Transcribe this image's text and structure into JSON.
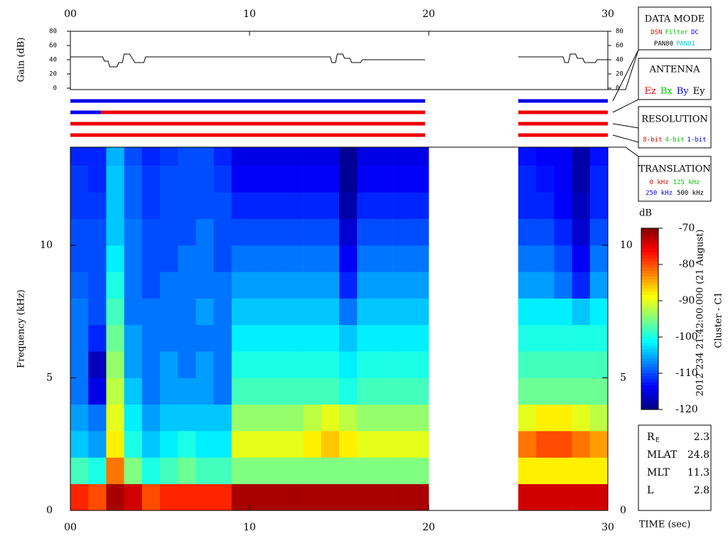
{
  "chart_data": [
    {
      "type": "line",
      "ylabel": "Gain (dB)",
      "x": [
        0,
        1.8,
        1.9,
        2.1,
        2.2,
        2.6,
        2.7,
        2.9,
        3.0,
        3.3,
        3.4,
        3.5,
        3.6,
        4.1,
        4.2,
        14.5,
        14.6,
        14.8,
        14.9,
        15.2,
        15.3,
        15.6,
        15.7,
        16.2,
        16.3,
        19.8,
        22.5,
        25.0,
        27.5,
        27.6,
        27.8,
        27.9,
        28.2,
        28.3,
        28.6,
        28.7,
        29.3,
        29.4,
        30
      ],
      "series": [
        {
          "color": "#000000",
          "values": [
            44,
            44,
            38,
            38,
            30,
            30,
            36,
            36,
            48,
            48,
            44,
            40,
            36,
            36,
            44,
            44,
            36,
            36,
            48,
            48,
            42,
            42,
            36,
            36,
            40,
            40,
            null,
            44,
            44,
            36,
            36,
            48,
            48,
            42,
            42,
            36,
            36,
            40,
            40
          ]
        }
      ],
      "xlim": [
        0,
        30
      ],
      "ylim": [
        0,
        80
      ],
      "xticks": [
        {
          "value": 0,
          "label": "00"
        },
        10,
        20,
        30
      ],
      "yticks": [
        0,
        20,
        40,
        60,
        80
      ]
    },
    {
      "type": "timeline",
      "xlim": [
        0,
        30
      ],
      "rows": [
        {
          "segments": [
            {
              "start": 0,
              "end": 19.8,
              "color": "#0000ee"
            },
            {
              "start": 25,
              "end": 30,
              "color": "#0000ee"
            }
          ]
        },
        {
          "segments": [
            {
              "start": 0,
              "end": 1.7,
              "color": "#0000ee"
            },
            {
              "start": 1.7,
              "end": 19.8,
              "color": "#ee0000"
            },
            {
              "start": 25,
              "end": 30,
              "color": "#ee0000"
            }
          ]
        },
        {
          "segments": [
            {
              "start": 0,
              "end": 19.8,
              "color": "#ee0000"
            },
            {
              "start": 25,
              "end": 30,
              "color": "#ee0000"
            }
          ]
        },
        {
          "segments": [
            {
              "start": 0,
              "end": 19.8,
              "color": "#ee0000"
            },
            {
              "start": 25,
              "end": 30,
              "color": "#ee0000"
            }
          ]
        }
      ],
      "legends": [
        {
          "title": "DATA MODE",
          "lines": [
            [
              {
                "text": "DSN",
                "color": "#ee0000"
              },
              {
                "text": "Filter",
                "color": "#00cc00"
              },
              {
                "text": "DC",
                "color": "#0000ee"
              }
            ],
            [
              {
                "text": "PAN80",
                "color": "#000000"
              },
              {
                "text": "PAN81",
                "color": "#00cccc"
              }
            ]
          ]
        },
        {
          "title": "ANTENNA",
          "lines": [
            [
              {
                "text": "Ez",
                "color": "#ee0000"
              },
              {
                "text": "Bx",
                "color": "#00cc00"
              },
              {
                "text": "By",
                "color": "#0000ee"
              },
              {
                "text": "Ey",
                "color": "#000000"
              }
            ]
          ]
        },
        {
          "title": "RESOLUTION",
          "lines": [
            [
              {
                "text": "8-bit",
                "color": "#ee0000"
              },
              {
                "text": "4-bit",
                "color": "#00cc00"
              },
              {
                "text": "1-bit",
                "color": "#0000ee"
              }
            ]
          ]
        },
        {
          "title": "TRANSLATION",
          "lines": [
            [
              {
                "text": "0 kHz",
                "color": "#ee0000"
              },
              {
                "text": "125 kHz",
                "color": "#00cc00"
              }
            ],
            [
              {
                "text": "250 kHz",
                "color": "#0000ee"
              },
              {
                "text": "500 kHz",
                "color": "#000000"
              }
            ]
          ]
        }
      ]
    },
    {
      "type": "heatmap",
      "ylabel": "Frequency (kHz)",
      "xlabel": "TIME (sec)",
      "xbins": [
        0,
        1,
        2,
        3,
        4,
        5,
        6,
        7,
        8,
        9,
        10,
        11,
        12,
        13,
        14,
        15,
        16,
        17,
        18,
        19,
        20,
        21,
        22,
        23,
        24,
        25,
        26,
        27,
        28,
        29,
        30
      ],
      "ybins": [
        0,
        1,
        2,
        3,
        4,
        5,
        6,
        7,
        8,
        9,
        10,
        11,
        12,
        13,
        13.7
      ],
      "z": [
        [
          -78,
          -80,
          -72,
          -74,
          -80,
          -78,
          -78,
          -78,
          -78,
          -72,
          -72,
          -72,
          -72,
          -72,
          -72,
          -72,
          -72,
          -72,
          -72,
          -72,
          null,
          null,
          null,
          null,
          null,
          -74,
          -74,
          -74,
          -74,
          -74
        ],
        [
          -98,
          -100,
          -82,
          -95,
          -100,
          -98,
          -96,
          -98,
          -98,
          -95,
          -95,
          -95,
          -95,
          -95,
          -95,
          -95,
          -95,
          -95,
          -95,
          -95,
          null,
          null,
          null,
          null,
          null,
          -88,
          -88,
          -88,
          -88,
          -88
        ],
        [
          -104,
          -106,
          -88,
          -100,
          -104,
          -102,
          -100,
          -102,
          -102,
          -90,
          -90,
          -90,
          -90,
          -88,
          -86,
          -88,
          -90,
          -90,
          -90,
          -90,
          null,
          null,
          null,
          null,
          null,
          -82,
          -80,
          -80,
          -82,
          -84
        ],
        [
          -106,
          -108,
          -90,
          -102,
          -106,
          -104,
          -104,
          -104,
          -104,
          -94,
          -94,
          -94,
          -94,
          -92,
          -90,
          -92,
          -94,
          -94,
          -94,
          -94,
          null,
          null,
          null,
          null,
          null,
          -90,
          -88,
          -88,
          -90,
          -92
        ],
        [
          -108,
          -115,
          -92,
          -104,
          -108,
          -106,
          -106,
          -106,
          -108,
          -98,
          -98,
          -98,
          -98,
          -98,
          -98,
          -100,
          -98,
          -98,
          -98,
          -98,
          null,
          null,
          null,
          null,
          null,
          -96,
          -96,
          -96,
          -96,
          -96
        ],
        [
          -108,
          -117,
          -94,
          -106,
          -108,
          -106,
          -108,
          -106,
          -108,
          -100,
          -100,
          -100,
          -100,
          -100,
          -100,
          -102,
          -100,
          -100,
          -100,
          -100,
          null,
          null,
          null,
          null,
          null,
          -98,
          -98,
          -98,
          -98,
          -98
        ],
        [
          -108,
          -112,
          -96,
          -106,
          -108,
          -108,
          -108,
          -108,
          -108,
          -102,
          -102,
          -102,
          -102,
          -102,
          -102,
          -104,
          -102,
          -102,
          -102,
          -102,
          null,
          null,
          null,
          null,
          null,
          -100,
          -100,
          -100,
          -100,
          -100
        ],
        [
          -108,
          -110,
          -98,
          -108,
          -108,
          -108,
          -108,
          -106,
          -108,
          -104,
          -104,
          -104,
          -104,
          -104,
          -104,
          -108,
          -104,
          -104,
          -104,
          -104,
          null,
          null,
          null,
          null,
          null,
          -102,
          -102,
          -102,
          -104,
          -102
        ],
        [
          -109,
          -110,
          -100,
          -108,
          -110,
          -108,
          -108,
          -108,
          -108,
          -106,
          -106,
          -106,
          -106,
          -106,
          -106,
          -112,
          -106,
          -106,
          -106,
          -106,
          null,
          null,
          null,
          null,
          null,
          -106,
          -106,
          -108,
          -112,
          -106
        ],
        [
          -110,
          -110,
          -102,
          -108,
          -110,
          -110,
          -108,
          -108,
          -110,
          -108,
          -108,
          -108,
          -108,
          -108,
          -108,
          -114,
          -108,
          -108,
          -108,
          -108,
          null,
          null,
          null,
          null,
          null,
          -108,
          -108,
          -110,
          -114,
          -108
        ],
        [
          -110,
          -110,
          -104,
          -108,
          -110,
          -110,
          -110,
          -108,
          -110,
          -110,
          -110,
          -110,
          -110,
          -110,
          -110,
          -116,
          -110,
          -110,
          -110,
          -110,
          null,
          null,
          null,
          null,
          null,
          -110,
          -110,
          -112,
          -116,
          -110
        ],
        [
          -111,
          -111,
          -104,
          -109,
          -111,
          -110,
          -110,
          -110,
          -110,
          -112,
          -112,
          -112,
          -112,
          -112,
          -112,
          -118,
          -112,
          -112,
          -112,
          -112,
          null,
          null,
          null,
          null,
          null,
          -112,
          -112,
          -114,
          -117,
          -112
        ],
        [
          -111,
          -112,
          -104,
          -109,
          -111,
          -110,
          -110,
          -110,
          -111,
          -114,
          -114,
          -114,
          -114,
          -114,
          -114,
          -119,
          -114,
          -114,
          -114,
          -114,
          null,
          null,
          null,
          null,
          null,
          -112,
          -113,
          -114,
          -118,
          -112
        ],
        [
          -112,
          -112,
          -105,
          -110,
          -112,
          -111,
          -110,
          -110,
          -112,
          -115,
          -115,
          -115,
          -115,
          -115,
          -115,
          -119,
          -115,
          -115,
          -115,
          -115,
          null,
          null,
          null,
          null,
          null,
          -113,
          -114,
          -114,
          -118,
          -113
        ]
      ],
      "xlim": [
        0,
        30
      ],
      "ylim": [
        0,
        13.7
      ],
      "xticks": [
        {
          "value": 0,
          "label": "00"
        },
        10,
        20,
        30
      ],
      "yticks": [
        0,
        5,
        10
      ],
      "colorbar": {
        "label": "dB",
        "zlim": [
          -120,
          -70
        ],
        "ticks": [
          -70,
          -80,
          -90,
          -100,
          -110,
          -120
        ]
      },
      "annotations": [
        "2012 234 21:42:00.000 (21 August)",
        "Cluster - C1"
      ]
    }
  ],
  "info": {
    "rows": [
      {
        "label": "R",
        "sub": "E",
        "value": 2.3
      },
      {
        "label": "MLAT",
        "value": 24.8
      },
      {
        "label": "MLT",
        "value": 11.3
      },
      {
        "label": "L",
        "value": 2.8
      }
    ]
  }
}
